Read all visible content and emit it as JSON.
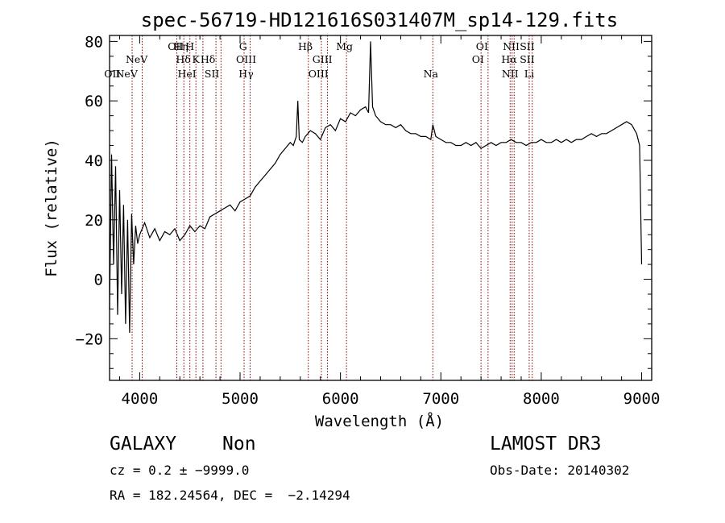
{
  "chart_data": {
    "type": "line",
    "title": "spec-56719-HD121616S031407M_sp14-129.fits",
    "xlabel": "Wavelength (Å)",
    "ylabel": "Flux (relative)",
    "xlim": [
      3700,
      9100
    ],
    "ylim": [
      -34,
      82
    ],
    "xticks": [
      4000,
      5000,
      6000,
      7000,
      8000,
      9000
    ],
    "yticks": [
      -20,
      0,
      20,
      40,
      60,
      80
    ],
    "line_color": "#000000",
    "marker_color": "#8b0000",
    "spectrum": {
      "x": [
        3700,
        3720,
        3740,
        3760,
        3780,
        3800,
        3820,
        3840,
        3860,
        3880,
        3900,
        3920,
        3940,
        3960,
        3980,
        4000,
        4050,
        4100,
        4150,
        4200,
        4250,
        4300,
        4350,
        4400,
        4450,
        4500,
        4550,
        4600,
        4650,
        4700,
        4750,
        4800,
        4850,
        4900,
        4950,
        5000,
        5050,
        5100,
        5150,
        5200,
        5250,
        5300,
        5350,
        5400,
        5450,
        5500,
        5530,
        5560,
        5575,
        5590,
        5620,
        5650,
        5700,
        5750,
        5800,
        5850,
        5900,
        5950,
        6000,
        6050,
        6100,
        6150,
        6200,
        6250,
        6280,
        6300,
        6320,
        6350,
        6400,
        6450,
        6500,
        6550,
        6600,
        6650,
        6700,
        6750,
        6800,
        6850,
        6900,
        6920,
        6950,
        7000,
        7050,
        7100,
        7150,
        7200,
        7250,
        7300,
        7350,
        7400,
        7450,
        7500,
        7550,
        7600,
        7650,
        7700,
        7750,
        7800,
        7850,
        7900,
        7950,
        8000,
        8050,
        8100,
        8150,
        8200,
        8250,
        8300,
        8350,
        8400,
        8450,
        8500,
        8550,
        8600,
        8650,
        8700,
        8750,
        8800,
        8850,
        8900,
        8950,
        8980,
        9000
      ],
      "y": [
        -10,
        42,
        5,
        38,
        -12,
        30,
        -5,
        25,
        -15,
        20,
        -18,
        22,
        5,
        18,
        12,
        15,
        19,
        14,
        17,
        13,
        16,
        15,
        17,
        13,
        15,
        18,
        16,
        18,
        17,
        21,
        22,
        23,
        24,
        25,
        23,
        26,
        27,
        28,
        31,
        33,
        35,
        37,
        39,
        42,
        44,
        46,
        45,
        48,
        60,
        47,
        46,
        48,
        50,
        49,
        47,
        51,
        52,
        50,
        54,
        53,
        56,
        55,
        57,
        58,
        56,
        80,
        58,
        55,
        53,
        52,
        52,
        51,
        52,
        50,
        49,
        49,
        48,
        48,
        47,
        52,
        48,
        47,
        46,
        46,
        45,
        45,
        46,
        45,
        46,
        44,
        45,
        46,
        45,
        46,
        46,
        47,
        46,
        46,
        45,
        46,
        46,
        47,
        46,
        46,
        47,
        46,
        47,
        46,
        47,
        47,
        48,
        49,
        48,
        49,
        49,
        50,
        51,
        52,
        53,
        52,
        49,
        45,
        5
      ]
    },
    "line_markers": [
      {
        "label": "NeV",
        "x": 3870,
        "level": 3
      },
      {
        "label": "NeV",
        "x": 3970,
        "level": 2
      },
      {
        "label": "OII",
        "x": 3727,
        "level": 3
      },
      {
        "label": "OII",
        "x": 4360,
        "level": 1
      },
      {
        "label": "Hη",
        "x": 4410,
        "level": 1
      },
      {
        "label": "Hδ",
        "x": 4435,
        "level": 2
      },
      {
        "label": "HeI",
        "x": 4471,
        "level": 3
      },
      {
        "label": "H",
        "x": 4500,
        "level": 1
      },
      {
        "label": "K",
        "x": 4560,
        "level": 2
      },
      {
        "label": "Hδ",
        "x": 4680,
        "level": 2
      },
      {
        "label": "SII",
        "x": 4720,
        "level": 3
      },
      {
        "label": "G",
        "x": 5030,
        "level": 1
      },
      {
        "label": "OIII",
        "x": 5060,
        "level": 2
      },
      {
        "label": "Hγ",
        "x": 5060,
        "level": 3
      },
      {
        "label": "Hβ",
        "x": 5650,
        "level": 1
      },
      {
        "label": "GIII",
        "x": 5820,
        "level": 2
      },
      {
        "label": "OIII",
        "x": 5780,
        "level": 3
      },
      {
        "label": "Mg",
        "x": 6040,
        "level": 1
      },
      {
        "label": "Na",
        "x": 6900,
        "level": 3
      },
      {
        "label": "OI",
        "x": 7410,
        "level": 1
      },
      {
        "label": "OI",
        "x": 7370,
        "level": 2
      },
      {
        "label": "NII",
        "x": 7700,
        "level": 1
      },
      {
        "label": "SII",
        "x": 7860,
        "level": 1
      },
      {
        "label": "Hα",
        "x": 7680,
        "level": 2
      },
      {
        "label": "SII",
        "x": 7860,
        "level": 2
      },
      {
        "label": "NII",
        "x": 7690,
        "level": 3
      },
      {
        "label": "Li",
        "x": 7880,
        "level": 3
      }
    ],
    "marker_lines_x": [
      3925,
      4025,
      4370,
      4440,
      4500,
      4560,
      4630,
      4760,
      4810,
      5040,
      5100,
      5680,
      5810,
      5870,
      6060,
      6920,
      7400,
      7470,
      7690,
      7710,
      7730,
      7880,
      7910
    ]
  },
  "info": {
    "class": "GALAXY",
    "subclass": "Non",
    "survey": "LAMOST DR3",
    "cz": "cz = 0.2 ± −9999.0",
    "obs_date": "Obs-Date: 20140302",
    "coords": "RA = 182.24564, DEC =  −2.14294"
  }
}
